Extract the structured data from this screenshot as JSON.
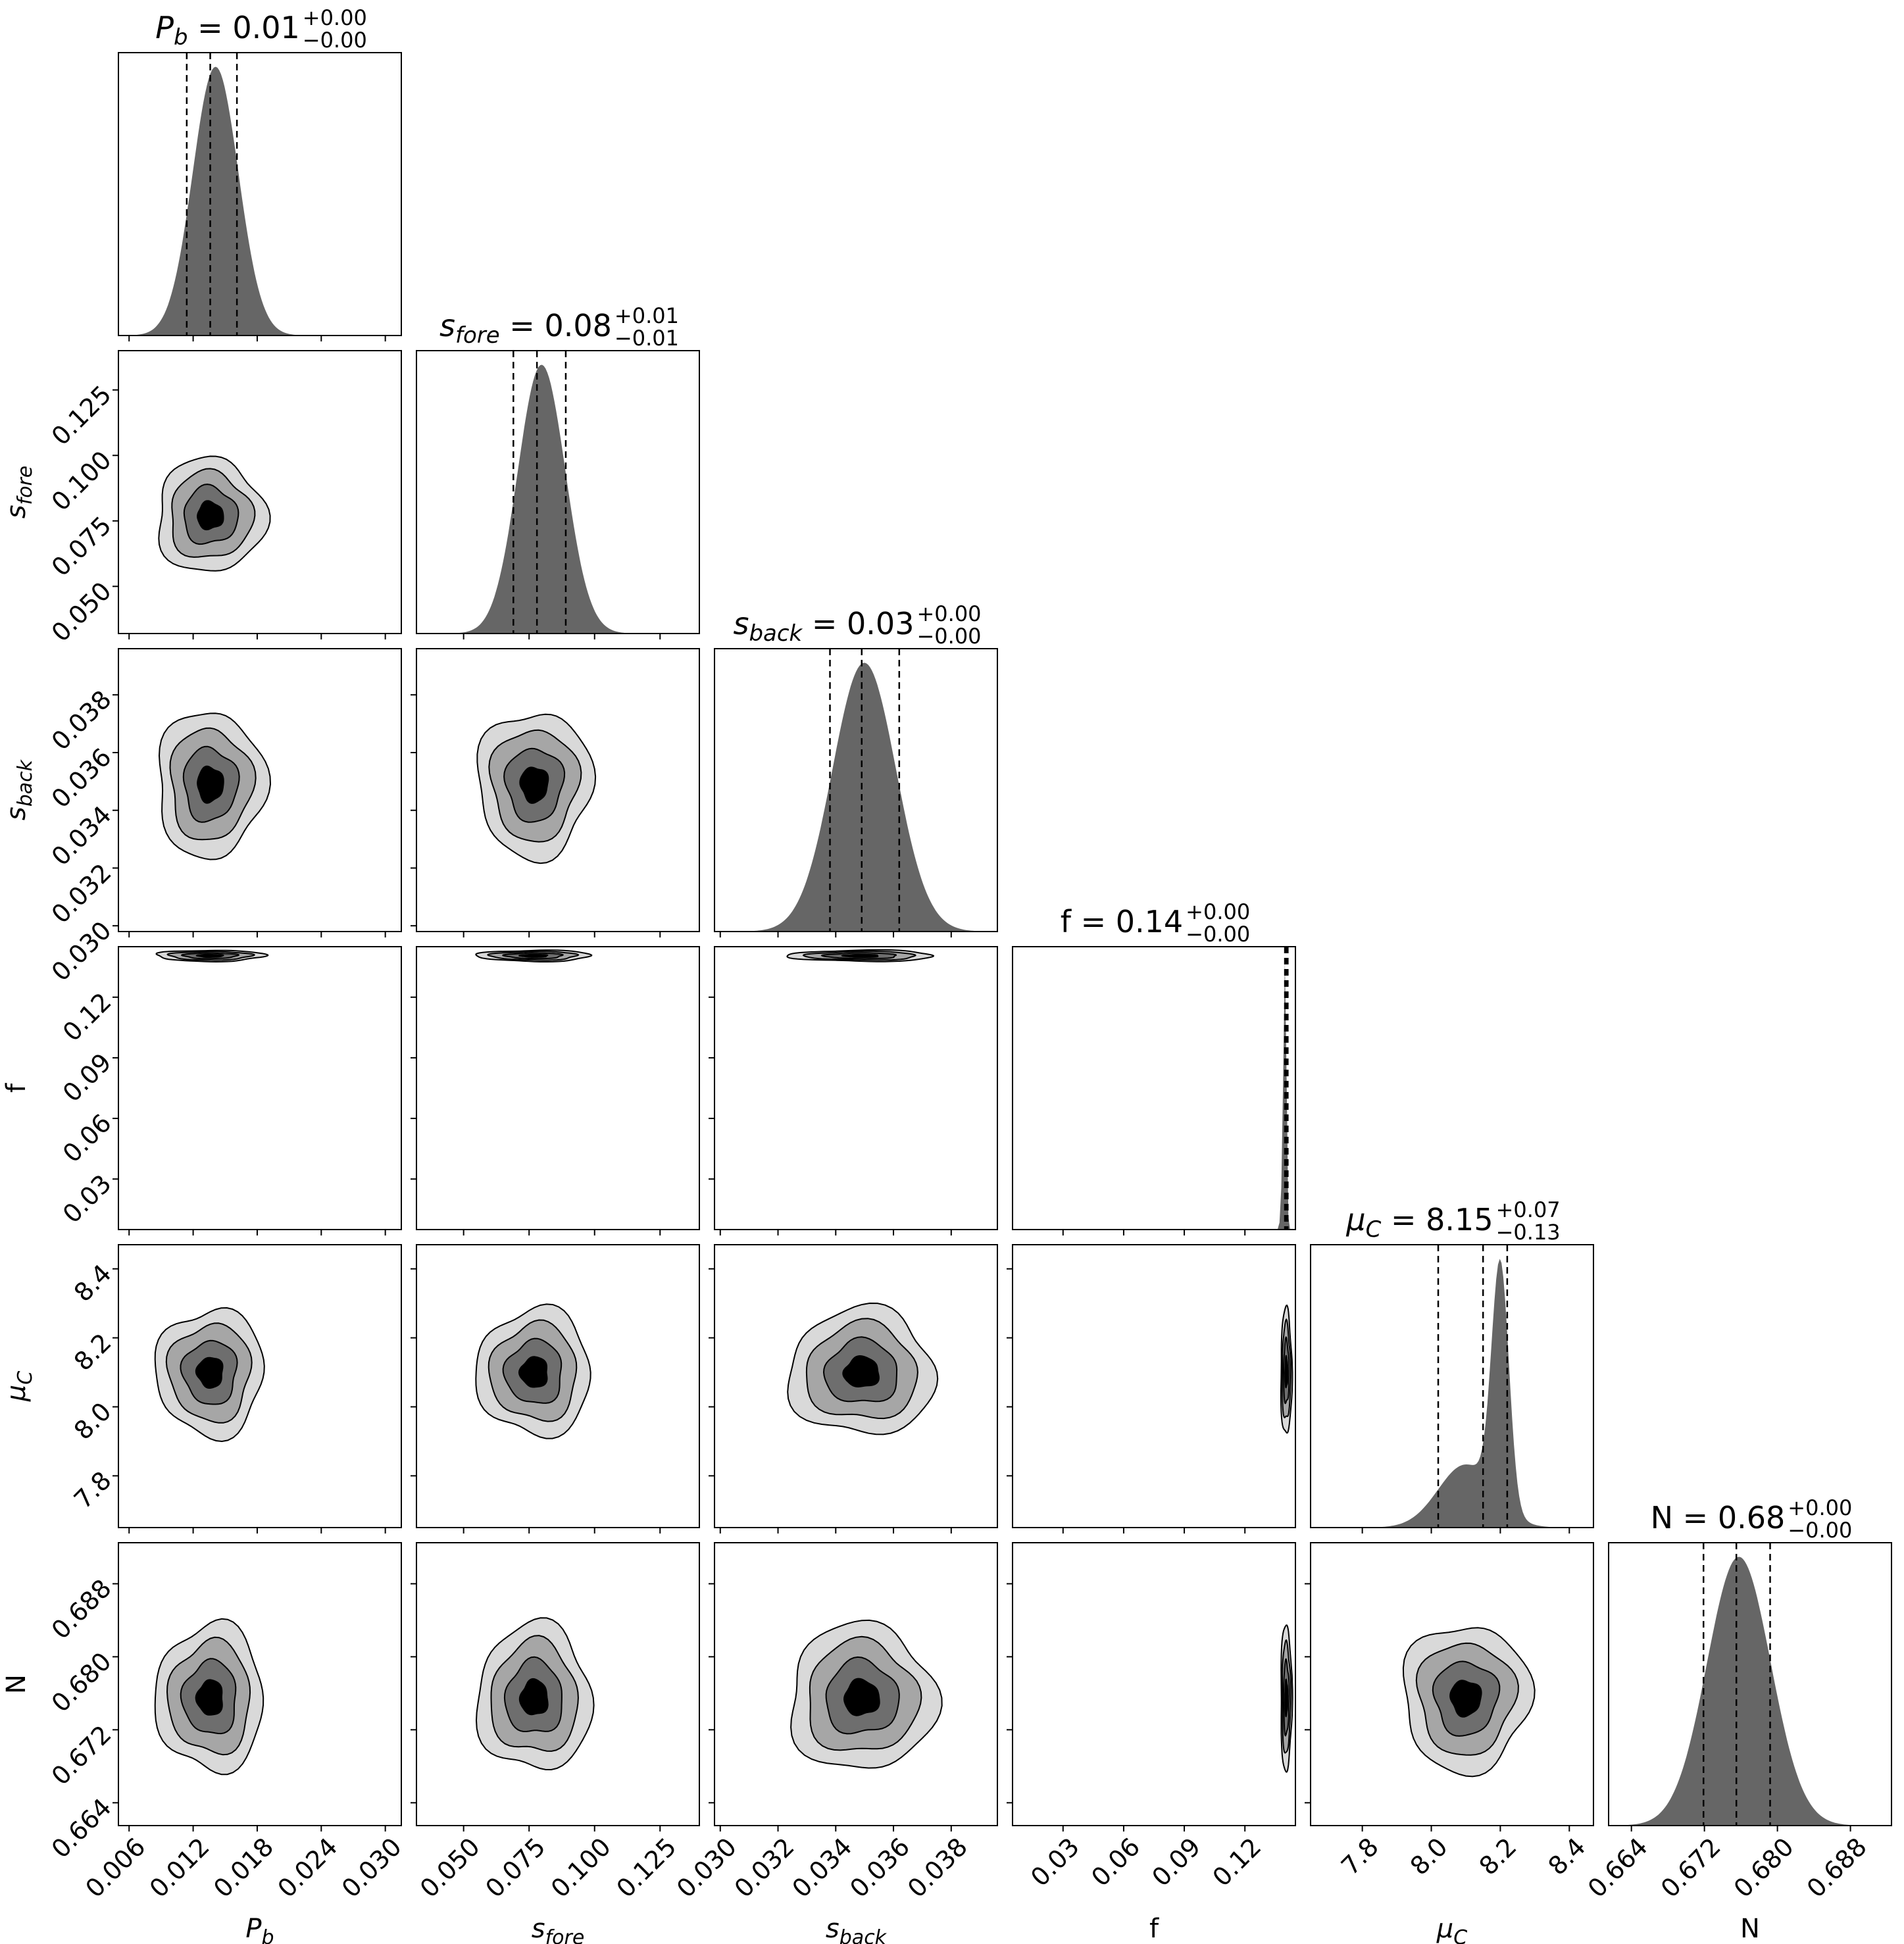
{
  "chart_data": {
    "type": "corner",
    "parameters": [
      {
        "key": "P_b",
        "label": "P",
        "label_sub": "b",
        "italic": true,
        "range": [
          0.005,
          0.0315
        ],
        "ticks": [
          "0.006",
          "0.012",
          "0.018",
          "0.024",
          "0.030"
        ],
        "tick_values": [
          0.006,
          0.012,
          0.018,
          0.024,
          0.03
        ],
        "median": 0.0136,
        "q16": 0.0114,
        "q84": 0.0161,
        "title_main": "P",
        "title_sub": "b",
        "title_value": " = 0.01",
        "title_plus": "+0.00",
        "title_minus": "−0.00",
        "hist": {
          "mean": 0.0136,
          "sigma": 0.0022,
          "skew": 0.3
        }
      },
      {
        "key": "s_fore",
        "label": "s",
        "label_sub": "fore",
        "italic": true,
        "range": [
          0.032,
          0.14
        ],
        "ticks": [
          "0.050",
          "0.075",
          "0.100",
          "0.125"
        ],
        "tick_values": [
          0.05,
          0.075,
          0.1,
          0.125
        ],
        "median": 0.078,
        "q16": 0.069,
        "q84": 0.089,
        "title_main": "s",
        "title_sub": "fore",
        "title_value": " = 0.08",
        "title_plus": "+0.01",
        "title_minus": "−0.01",
        "hist": {
          "mean": 0.077,
          "sigma": 0.0095,
          "skew": 0.4
        }
      },
      {
        "key": "s_back",
        "label": "s",
        "label_sub": "back",
        "italic": true,
        "range": [
          0.0298,
          0.0396
        ],
        "ticks": [
          "0.030",
          "0.032",
          "0.034",
          "0.036",
          "0.038"
        ],
        "tick_values": [
          0.03,
          0.032,
          0.034,
          0.036,
          0.038
        ],
        "median": 0.0349,
        "q16": 0.0338,
        "q84": 0.0362,
        "title_main": "s",
        "title_sub": "back",
        "title_value": " = 0.03",
        "title_plus": "+0.00",
        "title_minus": "−0.00",
        "hist": {
          "mean": 0.0349,
          "sigma": 0.0011,
          "skew": 0.1
        }
      },
      {
        "key": "f",
        "label": "f",
        "label_sub": "",
        "italic": false,
        "range": [
          0.005,
          0.145
        ],
        "ticks": [
          "0.03",
          "0.06",
          "0.09",
          "0.12"
        ],
        "tick_values": [
          0.03,
          0.06,
          0.09,
          0.12
        ],
        "median": 0.1405,
        "q16": 0.1398,
        "q84": 0.1412,
        "title_main": "f",
        "title_sub": "",
        "title_value": " = 0.14",
        "title_plus": "+0.00",
        "title_minus": "−0.00",
        "hist": {
          "mean": 0.1405,
          "sigma": 0.0012,
          "skew": -2.0
        }
      },
      {
        "key": "mu_C",
        "label": "μ",
        "label_sub": "C",
        "italic": true,
        "range": [
          7.65,
          8.47
        ],
        "ticks": [
          "7.8",
          "8.0",
          "8.2",
          "8.4"
        ],
        "tick_values": [
          7.8,
          8.0,
          8.2,
          8.4
        ],
        "median": 8.15,
        "q16": 8.02,
        "q84": 8.22,
        "title_main": "μ",
        "title_sub": "C",
        "title_value": " = 8.15",
        "title_plus": "+0.07",
        "title_minus": "−0.13",
        "hist": {
          "mean": 8.1,
          "sigma": 0.08,
          "skew": 0.0
        }
      },
      {
        "key": "N",
        "label": "N",
        "label_sub": "",
        "italic": false,
        "range": [
          0.6615,
          0.6925
        ],
        "ticks": [
          "0.664",
          "0.672",
          "0.680",
          "0.688"
        ],
        "tick_values": [
          0.664,
          0.672,
          0.68,
          0.688
        ],
        "median": 0.6755,
        "q16": 0.6719,
        "q84": 0.6792,
        "title_main": "N",
        "title_sub": "",
        "title_value": " = 0.68",
        "title_plus": "+0.00",
        "title_minus": "−0.00",
        "hist": {
          "mean": 0.6755,
          "sigma": 0.0035,
          "skew": 0.1
        }
      }
    ],
    "contour_levels": 4,
    "contour_fill_colors": [
      "#d9d9d9",
      "#a6a6a6",
      "#6e6e6e",
      "#000000"
    ],
    "histogram_color": "#666666",
    "quantile_line_style": "dashed",
    "layout": "lower-triangle"
  }
}
